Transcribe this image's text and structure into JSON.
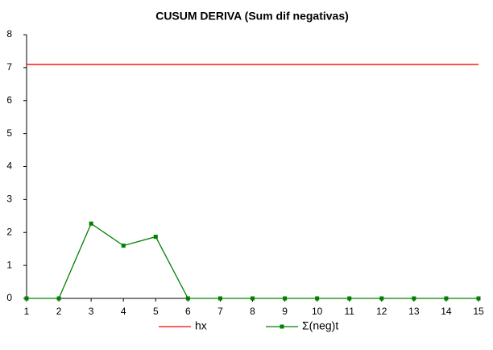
{
  "chart_data": {
    "type": "line",
    "title": "CUSUM DERIVA (Sum dif negativas)",
    "x": [
      1,
      2,
      3,
      4,
      5,
      6,
      7,
      8,
      9,
      10,
      11,
      12,
      13,
      14,
      15
    ],
    "series": [
      {
        "name": "hx",
        "color": "#ff0000",
        "values": [
          7.1,
          7.1,
          7.1,
          7.1,
          7.1,
          7.1,
          7.1,
          7.1,
          7.1,
          7.1,
          7.1,
          7.1,
          7.1,
          7.1,
          7.1
        ],
        "markers": false
      },
      {
        "name": "Σ(neg)t",
        "color": "#008000",
        "values": [
          0,
          0,
          2.27,
          1.6,
          1.87,
          0,
          0,
          0,
          0,
          0,
          0,
          0,
          0,
          0,
          0
        ],
        "markers": true
      }
    ],
    "xlim": [
      1,
      15
    ],
    "xticks": [
      1,
      2,
      3,
      4,
      5,
      6,
      7,
      8,
      9,
      10,
      11,
      12,
      13,
      14,
      15
    ],
    "ylim": [
      0,
      8
    ],
    "yticks": [
      0,
      1,
      2,
      3,
      4,
      5,
      6,
      7,
      8
    ],
    "grid": false,
    "legend": "bottom"
  }
}
